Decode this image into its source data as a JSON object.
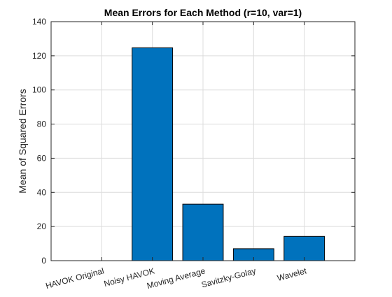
{
  "chart_data": {
    "type": "bar",
    "title": "Mean Errors for Each Method (r=10, var=1)",
    "xlabel": "",
    "ylabel": "Mean of Squared Errors",
    "categories": [
      "HAVOK Original",
      "Noisy HAVOK",
      "Moving Average",
      "Savitzky-Golay",
      "Wavelet"
    ],
    "values": [
      0,
      124.7,
      33.1,
      7.0,
      14.2
    ],
    "ylim": [
      0,
      140
    ],
    "yticks": [
      0,
      20,
      40,
      60,
      80,
      100,
      120,
      140
    ],
    "grid": true,
    "bar_color": "#0072BD",
    "bar_edge_color": "#000000"
  }
}
